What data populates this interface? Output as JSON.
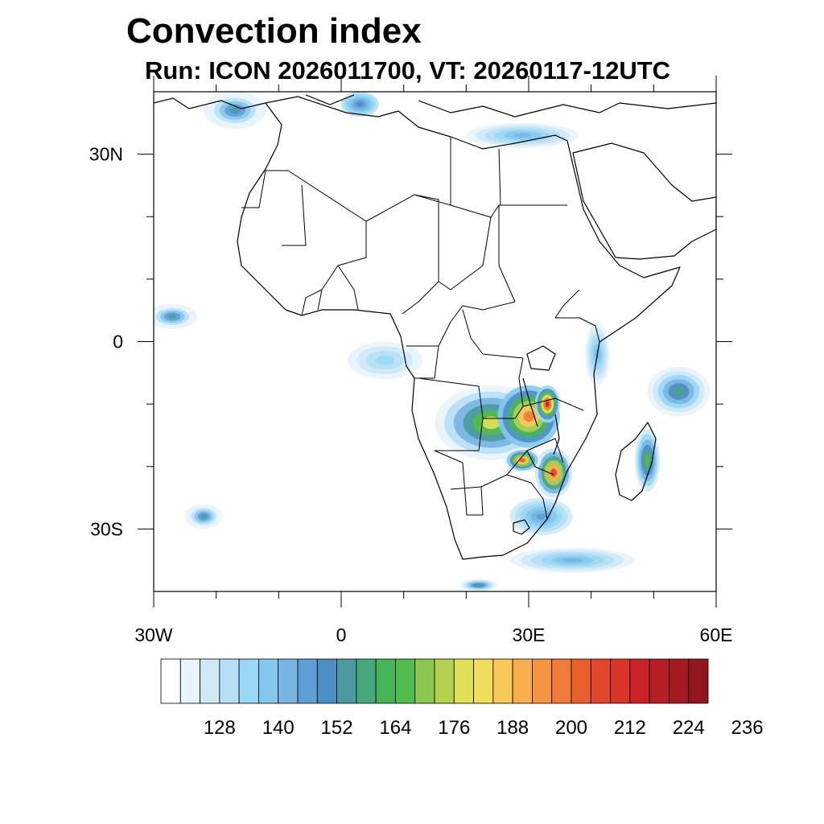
{
  "title": "Convection index",
  "subtitle": "Run: ICON 2026011700,  VT: 20260117-12UTC",
  "map": {
    "projection": "cylindrical-equidistant",
    "lon_range": [
      -30,
      60
    ],
    "lat_range": [
      -40,
      40
    ],
    "region": "Africa",
    "y_tick_labels": [
      {
        "lat": 30,
        "label": "30N"
      },
      {
        "lat": 0,
        "label": "0"
      },
      {
        "lat": -30,
        "label": "30S"
      }
    ],
    "x_tick_labels": [
      {
        "lon": -30,
        "label": "30W"
      },
      {
        "lon": 0,
        "label": "0"
      },
      {
        "lon": 30,
        "label": "30E"
      },
      {
        "lon": 60,
        "label": "60E"
      }
    ],
    "minor_lon_ticks": [
      -20,
      -10,
      10,
      20,
      40,
      50
    ],
    "minor_lat_ticks": [
      20,
      10,
      -10,
      -20
    ]
  },
  "colorbar": {
    "colors": [
      "#ffffff",
      "#e8f4fb",
      "#cfe9f7",
      "#b6e0f5",
      "#9ad7f4",
      "#85c8ee",
      "#78b5e3",
      "#5f9fd6",
      "#4c8fc4",
      "#4a9aa0",
      "#49a77e",
      "#46b55a",
      "#52bc4c",
      "#8cc751",
      "#b3d04f",
      "#e0df57",
      "#f2dc5c",
      "#f8c85a",
      "#f8ae4b",
      "#f49641",
      "#f07a37",
      "#e9602f",
      "#e0472b",
      "#d83428",
      "#c92328",
      "#b51e25",
      "#a31a21",
      "#8f171d"
    ],
    "tick_labels": [
      "128",
      "140",
      "152",
      "164",
      "176",
      "188",
      "200",
      "212",
      "224",
      "236"
    ]
  },
  "convection_areas": [
    {
      "name": "southern-africa-core",
      "lon": 24,
      "lat": -13,
      "rx": 9,
      "ry": 6,
      "level": 15
    },
    {
      "name": "zambia-hotspot",
      "lon": 30,
      "lat": -12,
      "rx": 5,
      "ry": 5,
      "level": 20
    },
    {
      "name": "mozambique-hotspot",
      "lon": 34,
      "lat": -21,
      "rx": 3,
      "ry": 4,
      "level": 22
    },
    {
      "name": "zimbabwe-hotspot",
      "lon": 29,
      "lat": -19,
      "rx": 3,
      "ry": 2,
      "level": 21
    },
    {
      "name": "malawi-hotspot",
      "lon": 33,
      "lat": -10,
      "rx": 2,
      "ry": 3,
      "level": 24
    },
    {
      "name": "madagascar-east",
      "lon": 49,
      "lat": -19,
      "rx": 2,
      "ry": 5,
      "level": 12
    },
    {
      "name": "indian-ocean-cell",
      "lon": 54,
      "lat": -8,
      "rx": 5,
      "ry": 4,
      "level": 10
    },
    {
      "name": "east-coast-cell",
      "lon": 41,
      "lat": -2,
      "rx": 2,
      "ry": 5,
      "level": 6
    },
    {
      "name": "mediterranean-west",
      "lon": -17,
      "lat": 37,
      "rx": 5,
      "ry": 3,
      "level": 9
    },
    {
      "name": "mediterranean-central",
      "lon": 3,
      "lat": 38,
      "rx": 3,
      "ry": 2,
      "level": 8
    },
    {
      "name": "eastern-mediterranean",
      "lon": 29,
      "lat": 33,
      "rx": 9,
      "ry": 2,
      "level": 6
    },
    {
      "name": "atlantic-tropical",
      "lon": -27,
      "lat": 4,
      "rx": 4,
      "ry": 2,
      "level": 9
    },
    {
      "name": "gulf-of-guinea",
      "lon": 7,
      "lat": -3,
      "rx": 6,
      "ry": 3,
      "level": 4
    },
    {
      "name": "south-atlantic-cell",
      "lon": -22,
      "lat": -28,
      "rx": 3,
      "ry": 2,
      "level": 9
    },
    {
      "name": "agulhas-band",
      "lon": 37,
      "lat": -35,
      "rx": 10,
      "ry": 2,
      "level": 6
    },
    {
      "name": "southwest-corner",
      "lon": 22,
      "lat": -39,
      "rx": 3,
      "ry": 1,
      "level": 10
    },
    {
      "name": "natal-coast",
      "lon": 32,
      "lat": -28,
      "rx": 5,
      "ry": 3,
      "level": 7
    }
  ]
}
